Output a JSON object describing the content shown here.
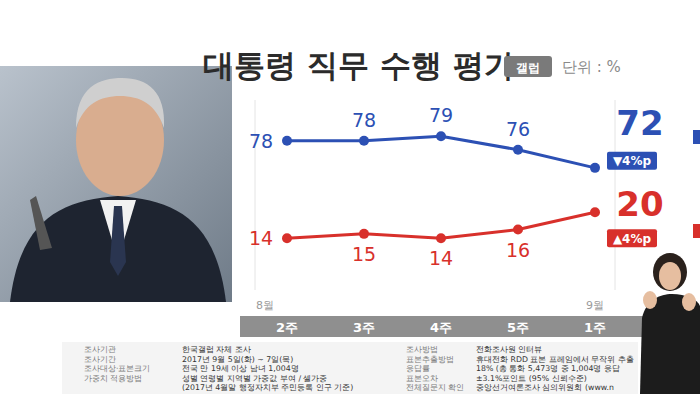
{
  "chart_data": {
    "type": "line",
    "title": "대통령 직무 수행 평가",
    "source": "갤럽",
    "unit": "단위 : %",
    "categories": [
      "2주",
      "3주",
      "4주",
      "5주",
      "1주"
    ],
    "months": [
      "8월",
      "9월"
    ],
    "series": [
      {
        "color": "#2c50b4",
        "values": [
          78,
          78,
          79,
          76,
          72
        ],
        "change": "▼4%p"
      },
      {
        "color": "#d8302b",
        "values": [
          14,
          15,
          14,
          16,
          20
        ],
        "change": "▲4%p",
        "axis": "y2"
      }
    ],
    "ylim": [
      45,
      87
    ],
    "y2lim": [
      2,
      46
    ],
    "tick_labels": "x",
    "data_labels": true,
    "grid": false,
    "marker": "circle",
    "notes": {
      "left": [
        {
          "label": "조사기관",
          "text": "한국갤럽 자체 조사"
        },
        {
          "label": "조사기간",
          "text": "2017년 9월 5일(화) ~ 7일(목)"
        },
        {
          "label": "조사대상·표본크기",
          "text": "전국 만 19세 이상 남녀 1,004명"
        },
        {
          "label": "가중치 적용방법",
          "text": "성별 연령별 지역별 가중값 부여 / 셀가중"
        },
        {
          "text": "(2017년 4월말 행정자치부 주민등록 인구 기준)"
        }
      ],
      "right": [
        {
          "label": "조사방법",
          "text": "전화조사원 인터뷰"
        },
        {
          "label": "표본추출방법",
          "text": "휴대전화 RDD 표본 프레임에서 무작위 추출"
        },
        {
          "label": "응답률",
          "text": "18% (총 통화 5,473명 중 1,004명 응답"
        },
        {
          "label": "표본오차",
          "text": "±3.1%포인트 (95% 신뢰수준)"
        },
        {
          "label": "전체질문지 확인",
          "text": "중앙선거여론조사 심의위원회 (www.n"
        }
      ]
    }
  }
}
